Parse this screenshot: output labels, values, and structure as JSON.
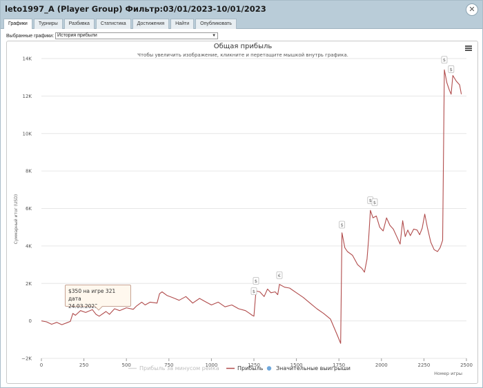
{
  "window": {
    "title": "leto1997_A (Player Group) Фильтр:03/01/2023-10/01/2023"
  },
  "tabs": [
    {
      "label": "Графики",
      "active": true
    },
    {
      "label": "Турниры",
      "active": false
    },
    {
      "label": "Разбивка",
      "active": false
    },
    {
      "label": "Статистика",
      "active": false
    },
    {
      "label": "Достижения",
      "active": false
    },
    {
      "label": "Найти",
      "active": false
    },
    {
      "label": "Опубликовать",
      "active": false
    }
  ],
  "selector": {
    "label": "Выбранные графики:",
    "value": "История прибыли"
  },
  "tooltip": {
    "line1": "$350 на игре 321 дата",
    "line2": "24.03.2023"
  },
  "chart_data": {
    "type": "line",
    "title": "Общая прибыль",
    "subtitle": "Чтобы увеличить изображение, кликните и перетащите мышкой внутрь графика.",
    "xlabel": "Номер игры",
    "ylabel": "Суммарный итог (USD)",
    "xlim": [
      0,
      2500
    ],
    "ylim": [
      -2000,
      14000
    ],
    "x_ticks": [
      0,
      250,
      500,
      750,
      1000,
      1250,
      1500,
      1750,
      2000,
      2250,
      2500
    ],
    "y_ticks": [
      -2000,
      0,
      2000,
      4000,
      6000,
      8000,
      10000,
      12000,
      14000
    ],
    "y_tick_labels": [
      "−2K",
      "0",
      "2K",
      "4K",
      "6K",
      "8K",
      "10K",
      "12K",
      "14K"
    ],
    "legend": [
      {
        "label": "Прибыль за минусом рейка",
        "color": "#d8d8d8",
        "marker": "line"
      },
      {
        "label": "Прибыль",
        "color": "#b04a4a",
        "marker": "line"
      },
      {
        "label": "Значительные выигрыши",
        "color": "#6fa8dc",
        "marker": "dot"
      }
    ],
    "series": [
      {
        "name": "Прибыль",
        "color": "#b04a4a",
        "points": [
          [
            0,
            0
          ],
          [
            30,
            -50
          ],
          [
            60,
            -180
          ],
          [
            90,
            -80
          ],
          [
            120,
            -200
          ],
          [
            150,
            -100
          ],
          [
            170,
            -30
          ],
          [
            185,
            400
          ],
          [
            200,
            300
          ],
          [
            230,
            550
          ],
          [
            260,
            450
          ],
          [
            300,
            600
          ],
          [
            321,
            350
          ],
          [
            340,
            250
          ],
          [
            380,
            500
          ],
          [
            400,
            350
          ],
          [
            430,
            650
          ],
          [
            460,
            550
          ],
          [
            500,
            700
          ],
          [
            540,
            620
          ],
          [
            560,
            800
          ],
          [
            590,
            1000
          ],
          [
            610,
            850
          ],
          [
            640,
            1000
          ],
          [
            680,
            950
          ],
          [
            695,
            1450
          ],
          [
            710,
            1550
          ],
          [
            740,
            1350
          ],
          [
            770,
            1250
          ],
          [
            810,
            1100
          ],
          [
            850,
            1300
          ],
          [
            890,
            950
          ],
          [
            930,
            1200
          ],
          [
            960,
            1050
          ],
          [
            1000,
            850
          ],
          [
            1040,
            1000
          ],
          [
            1080,
            750
          ],
          [
            1120,
            850
          ],
          [
            1160,
            650
          ],
          [
            1200,
            550
          ],
          [
            1225,
            400
          ],
          [
            1240,
            300
          ],
          [
            1250,
            250
          ],
          [
            1262,
            1600
          ],
          [
            1285,
            1550
          ],
          [
            1310,
            1300
          ],
          [
            1330,
            1700
          ],
          [
            1350,
            1500
          ],
          [
            1375,
            1550
          ],
          [
            1390,
            1400
          ],
          [
            1400,
            1950
          ],
          [
            1430,
            1800
          ],
          [
            1460,
            1750
          ],
          [
            1500,
            1500
          ],
          [
            1540,
            1250
          ],
          [
            1580,
            950
          ],
          [
            1620,
            650
          ],
          [
            1660,
            400
          ],
          [
            1700,
            100
          ],
          [
            1740,
            -750
          ],
          [
            1760,
            -1200
          ],
          [
            1768,
            4700
          ],
          [
            1785,
            3900
          ],
          [
            1800,
            3700
          ],
          [
            1830,
            3500
          ],
          [
            1860,
            3000
          ],
          [
            1885,
            2800
          ],
          [
            1900,
            2600
          ],
          [
            1915,
            3300
          ],
          [
            1925,
            4400
          ],
          [
            1935,
            5900
          ],
          [
            1950,
            5500
          ],
          [
            1970,
            5600
          ],
          [
            1990,
            5000
          ],
          [
            2010,
            4800
          ],
          [
            2030,
            5500
          ],
          [
            2050,
            5100
          ],
          [
            2070,
            4900
          ],
          [
            2090,
            4500
          ],
          [
            2110,
            4100
          ],
          [
            2125,
            5350
          ],
          [
            2140,
            4500
          ],
          [
            2155,
            4850
          ],
          [
            2170,
            4550
          ],
          [
            2190,
            4900
          ],
          [
            2210,
            4850
          ],
          [
            2225,
            4600
          ],
          [
            2240,
            4950
          ],
          [
            2255,
            5700
          ],
          [
            2270,
            5000
          ],
          [
            2290,
            4200
          ],
          [
            2310,
            3800
          ],
          [
            2330,
            3700
          ],
          [
            2345,
            3900
          ],
          [
            2360,
            4300
          ],
          [
            2370,
            13400
          ],
          [
            2385,
            12700
          ],
          [
            2400,
            12300
          ],
          [
            2410,
            12100
          ],
          [
            2420,
            13100
          ],
          [
            2440,
            12800
          ],
          [
            2460,
            12600
          ],
          [
            2470,
            12100
          ]
        ]
      }
    ],
    "markers": [
      {
        "x": 1250,
        "y": 1550,
        "symbol": "$"
      },
      {
        "x": 1262,
        "y": 2100,
        "symbol": "$"
      },
      {
        "x": 1400,
        "y": 2400,
        "symbol": "€"
      },
      {
        "x": 1768,
        "y": 5100,
        "symbol": "$"
      },
      {
        "x": 1935,
        "y": 6400,
        "symbol": "$"
      },
      {
        "x": 1960,
        "y": 6300,
        "symbol": "$"
      },
      {
        "x": 2370,
        "y": 13900,
        "symbol": "$"
      },
      {
        "x": 2410,
        "y": 13400,
        "symbol": "$"
      }
    ]
  }
}
